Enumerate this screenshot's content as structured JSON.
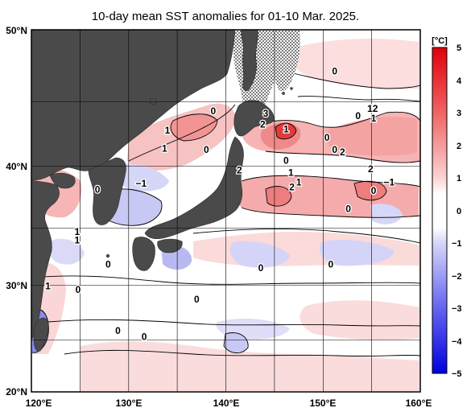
{
  "title": "10-day mean SST anomalies for 01-10 Mar. 2025.",
  "map": {
    "lon_range": [
      120,
      160
    ],
    "lat_range": [
      20,
      50
    ],
    "lon_ticks": [
      "120°E",
      "130°E",
      "140°E",
      "150°E",
      "160°E"
    ],
    "lat_ticks": [
      "50°N",
      "40°N",
      "30°N",
      "20°N"
    ],
    "grid": true,
    "land_color": "#4a4a4a",
    "sea_ice_pattern": "dotted"
  },
  "colorbar": {
    "unit": "[°C]",
    "ticks": [
      "5",
      "4",
      "3",
      "2",
      "1",
      "0",
      "−1",
      "−2",
      "−3",
      "−4",
      "−5"
    ],
    "min": -5,
    "max": 5,
    "colors": {
      "warm_max": "#e0000a",
      "warm_mid": "#f07a7a",
      "warm_low": "#fbdcdc",
      "neutral": "#ffffff",
      "cool_low": "#dcdcfa",
      "cool_mid": "#7a7af0",
      "cool_max": "#0000e0"
    }
  },
  "contour_labels": [
    {
      "text": "0",
      "lon": 138.7,
      "lat": 43.0
    },
    {
      "text": "0",
      "lon": 151.2,
      "lat": 46.3
    },
    {
      "text": "3",
      "lon": 144.1,
      "lat": 42.8
    },
    {
      "text": "2",
      "lon": 143.8,
      "lat": 41.9
    },
    {
      "text": "1",
      "lon": 146.2,
      "lat": 41.5
    },
    {
      "text": "0",
      "lon": 153.6,
      "lat": 42.6
    },
    {
      "text": "12",
      "lon": 155.1,
      "lat": 43.2
    },
    {
      "text": "1",
      "lon": 155.2,
      "lat": 42.4
    },
    {
      "text": "1",
      "lon": 134.0,
      "lat": 41.4
    },
    {
      "text": "1",
      "lon": 133.7,
      "lat": 39.9
    },
    {
      "text": "0",
      "lon": 138.0,
      "lat": 39.8
    },
    {
      "text": "0",
      "lon": 150.4,
      "lat": 40.8
    },
    {
      "text": "0",
      "lon": 151.2,
      "lat": 39.8
    },
    {
      "text": "2",
      "lon": 152.0,
      "lat": 39.6
    },
    {
      "text": "0",
      "lon": 146.2,
      "lat": 38.9
    },
    {
      "text": "2",
      "lon": 141.4,
      "lat": 38.1
    },
    {
      "text": "2",
      "lon": 154.9,
      "lat": 38.2
    },
    {
      "text": "1",
      "lon": 146.7,
      "lat": 37.9
    },
    {
      "text": "1",
      "lon": 147.5,
      "lat": 37.1
    },
    {
      "text": "2",
      "lon": 146.8,
      "lat": 36.7
    },
    {
      "text": "0",
      "lon": 155.2,
      "lat": 36.4
    },
    {
      "text": "−1",
      "lon": 156.8,
      "lat": 37.1
    },
    {
      "text": "−1",
      "lon": 131.3,
      "lat": 37.0
    },
    {
      "text": "0",
      "lon": 126.8,
      "lat": 36.5
    },
    {
      "text": "0",
      "lon": 152.6,
      "lat": 34.9
    },
    {
      "text": "1",
      "lon": 124.7,
      "lat": 33.0
    },
    {
      "text": "1",
      "lon": 124.7,
      "lat": 32.3
    },
    {
      "text": "0",
      "lon": 127.9,
      "lat": 30.3
    },
    {
      "text": "0",
      "lon": 143.6,
      "lat": 30.0
    },
    {
      "text": "0",
      "lon": 150.8,
      "lat": 30.3
    },
    {
      "text": "1",
      "lon": 121.7,
      "lat": 28.5
    },
    {
      "text": "0",
      "lon": 124.8,
      "lat": 28.2
    },
    {
      "text": "0",
      "lon": 137.0,
      "lat": 27.4
    },
    {
      "text": "0",
      "lon": 128.9,
      "lat": 24.8
    },
    {
      "text": "0",
      "lon": 131.6,
      "lat": 24.3
    }
  ]
}
